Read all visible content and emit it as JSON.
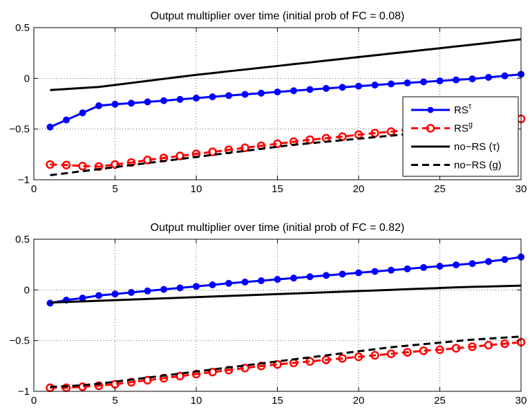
{
  "chart_data": [
    {
      "type": "line",
      "title": "Output multiplier over time (initial prob of FC = 0.08)",
      "xlabel": "",
      "ylabel": "",
      "xlim": [
        0,
        30
      ],
      "ylim": [
        -1,
        0.5
      ],
      "xticks": [
        0,
        5,
        10,
        15,
        20,
        25,
        30
      ],
      "yticks": [
        -1,
        -0.5,
        0,
        0.5
      ],
      "ytick_labels": [
        "−1",
        "−0.5",
        "0",
        "0.5"
      ],
      "grid": true,
      "legend_position": "right",
      "x": [
        1,
        2,
        3,
        4,
        5,
        6,
        7,
        8,
        9,
        10,
        11,
        12,
        13,
        14,
        15,
        16,
        17,
        18,
        19,
        20,
        21,
        22,
        23,
        24,
        25,
        26,
        27,
        28,
        29,
        30
      ],
      "series": [
        {
          "name": "RS",
          "sup": "τ",
          "color": "#0000ff",
          "style": "solid",
          "marker": "dot",
          "values": [
            -0.48,
            -0.41,
            -0.34,
            -0.27,
            -0.255,
            -0.245,
            -0.232,
            -0.22,
            -0.207,
            -0.195,
            -0.182,
            -0.17,
            -0.158,
            -0.146,
            -0.134,
            -0.122,
            -0.11,
            -0.099,
            -0.088,
            -0.077,
            -0.066,
            -0.055,
            -0.045,
            -0.035,
            -0.025,
            -0.015,
            -0.005,
            0.01,
            0.025,
            0.04
          ]
        },
        {
          "name": "RS",
          "sup": "g",
          "color": "#ff0000",
          "style": "dashed",
          "marker": "circle",
          "values": [
            -0.85,
            -0.855,
            -0.865,
            -0.87,
            -0.85,
            -0.83,
            -0.805,
            -0.785,
            -0.765,
            -0.745,
            -0.725,
            -0.705,
            -0.685,
            -0.665,
            -0.645,
            -0.625,
            -0.605,
            -0.59,
            -0.575,
            -0.555,
            -0.54,
            -0.525,
            -0.51,
            -0.495,
            -0.48,
            -0.465,
            -0.45,
            -0.435,
            -0.42,
            -0.4
          ]
        },
        {
          "name": "no−RS (τ)",
          "color": "#000000",
          "style": "solid",
          "marker": "none",
          "values": [
            -0.115,
            -0.105,
            -0.095,
            -0.085,
            -0.065,
            -0.045,
            -0.025,
            -0.005,
            0.015,
            0.035,
            0.052,
            0.07,
            0.087,
            0.105,
            0.122,
            0.14,
            0.157,
            0.175,
            0.192,
            0.21,
            0.227,
            0.245,
            0.262,
            0.28,
            0.297,
            0.315,
            0.332,
            0.35,
            0.368,
            0.385
          ]
        },
        {
          "name": "no−RS (g)",
          "color": "#000000",
          "style": "dashed",
          "marker": "none",
          "values": [
            -0.955,
            -0.935,
            -0.915,
            -0.895,
            -0.875,
            -0.855,
            -0.835,
            -0.815,
            -0.795,
            -0.775,
            -0.755,
            -0.735,
            -0.715,
            -0.695,
            -0.675,
            -0.655,
            -0.64,
            -0.625,
            -0.61,
            -0.595,
            -0.58,
            -0.565,
            -0.55,
            -0.535,
            -0.52,
            -0.505,
            -0.495,
            -0.485,
            -0.475,
            -0.465
          ]
        }
      ]
    },
    {
      "type": "line",
      "title": "Output multiplier over time (initial prob of FC = 0.82)",
      "xlabel": "",
      "ylabel": "",
      "xlim": [
        0,
        30
      ],
      "ylim": [
        -1,
        0.5
      ],
      "xticks": [
        0,
        5,
        10,
        15,
        20,
        25,
        30
      ],
      "yticks": [
        -1,
        -0.5,
        0,
        0.5
      ],
      "ytick_labels": [
        "−1",
        "−0.5",
        "0",
        "0.5"
      ],
      "grid": true,
      "legend_position": "none",
      "x": [
        1,
        2,
        3,
        4,
        5,
        6,
        7,
        8,
        9,
        10,
        11,
        12,
        13,
        14,
        15,
        16,
        17,
        18,
        19,
        20,
        21,
        22,
        23,
        24,
        25,
        26,
        27,
        28,
        29,
        30
      ],
      "series": [
        {
          "name": "RS",
          "sup": "τ",
          "color": "#0000ff",
          "style": "solid",
          "marker": "dot",
          "values": [
            -0.13,
            -0.1,
            -0.08,
            -0.055,
            -0.04,
            -0.025,
            -0.01,
            0.005,
            0.02,
            0.035,
            0.05,
            0.065,
            0.078,
            0.091,
            0.104,
            0.117,
            0.13,
            0.143,
            0.156,
            0.169,
            0.182,
            0.195,
            0.208,
            0.221,
            0.234,
            0.247,
            0.26,
            0.28,
            0.3,
            0.325
          ]
        },
        {
          "name": "RS",
          "sup": "g",
          "color": "#ff0000",
          "style": "dashed",
          "marker": "circle",
          "values": [
            -0.965,
            -0.965,
            -0.955,
            -0.945,
            -0.93,
            -0.91,
            -0.89,
            -0.87,
            -0.85,
            -0.83,
            -0.81,
            -0.79,
            -0.77,
            -0.75,
            -0.735,
            -0.72,
            -0.705,
            -0.69,
            -0.675,
            -0.66,
            -0.645,
            -0.63,
            -0.615,
            -0.6,
            -0.59,
            -0.575,
            -0.56,
            -0.545,
            -0.53,
            -0.515
          ]
        },
        {
          "name": "no−RS (τ)",
          "color": "#000000",
          "style": "solid",
          "marker": "none",
          "values": [
            -0.125,
            -0.119,
            -0.113,
            -0.107,
            -0.101,
            -0.095,
            -0.089,
            -0.083,
            -0.077,
            -0.071,
            -0.065,
            -0.059,
            -0.053,
            -0.047,
            -0.041,
            -0.035,
            -0.029,
            -0.023,
            -0.017,
            -0.011,
            -0.005,
            0.001,
            0.007,
            0.013,
            0.019,
            0.025,
            0.03,
            0.034,
            0.038,
            0.042
          ]
        },
        {
          "name": "no−RS (g)",
          "color": "#000000",
          "style": "dashed",
          "marker": "none",
          "values": [
            -0.955,
            -0.95,
            -0.94,
            -0.925,
            -0.905,
            -0.885,
            -0.865,
            -0.845,
            -0.825,
            -0.805,
            -0.785,
            -0.765,
            -0.745,
            -0.725,
            -0.705,
            -0.685,
            -0.665,
            -0.645,
            -0.625,
            -0.605,
            -0.585,
            -0.565,
            -0.55,
            -0.535,
            -0.52,
            -0.505,
            -0.49,
            -0.48,
            -0.47,
            -0.46
          ]
        }
      ]
    }
  ]
}
